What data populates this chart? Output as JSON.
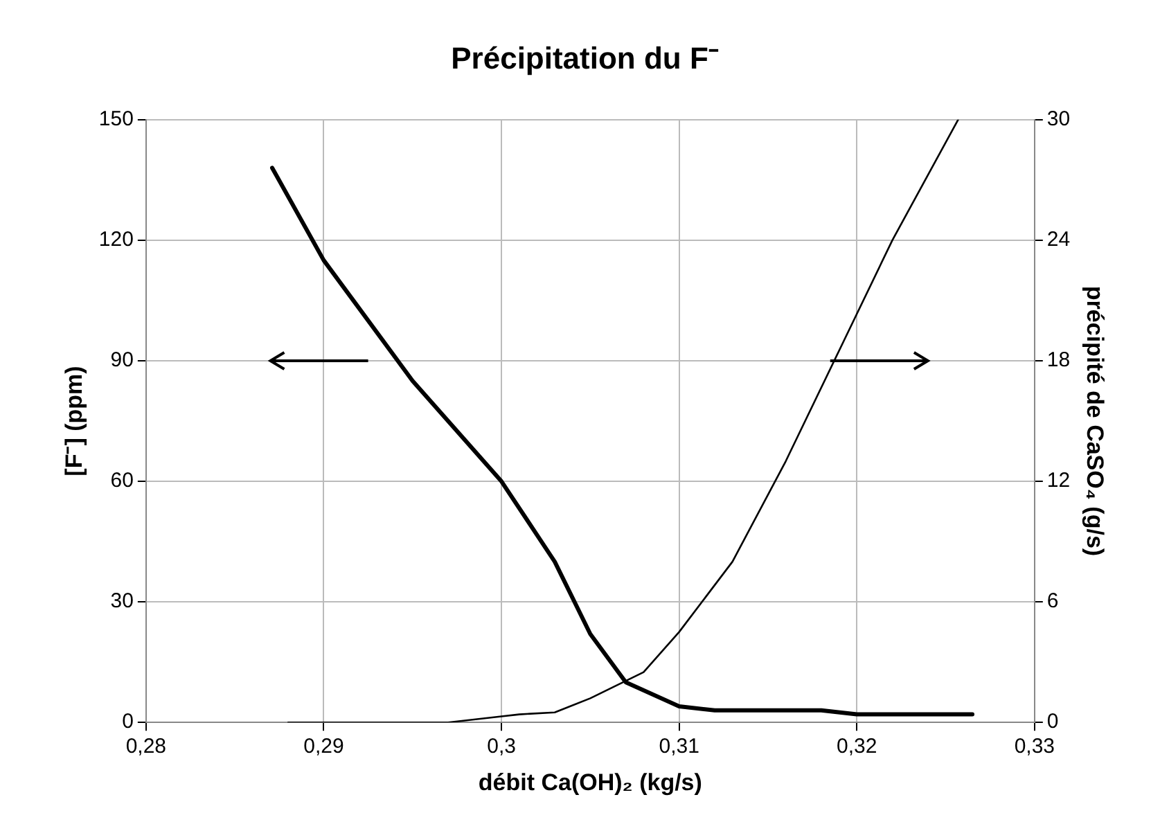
{
  "chart_data": {
    "type": "line",
    "title": "Précipitation du F⁻",
    "xlabel": "débit Ca(OH)₂ (kg/s)",
    "ylabel": "[F⁻] (ppm)",
    "y2label": "précipité de CaSO₄ (g/s)",
    "xlim": [
      0.28,
      0.33
    ],
    "xticks": [
      {
        "value": 0.28,
        "label": "0,28"
      },
      {
        "value": 0.29,
        "label": "0,29"
      },
      {
        "value": 0.3,
        "label": "0,3"
      },
      {
        "value": 0.31,
        "label": "0,31"
      },
      {
        "value": 0.32,
        "label": "0,32"
      },
      {
        "value": 0.33,
        "label": "0,33"
      }
    ],
    "ylim": [
      0,
      150
    ],
    "yticks": [
      0,
      30,
      60,
      90,
      120,
      150
    ],
    "y2lim": [
      0,
      30
    ],
    "y2ticks": [
      0,
      6,
      12,
      18,
      24,
      30
    ],
    "grid": true,
    "legend": false,
    "marker": "none",
    "line_style": "solid",
    "series": [
      {
        "color": "#000000",
        "x": [
          0.2871,
          0.29,
          0.295,
          0.3,
          0.303,
          0.305,
          0.307,
          0.31,
          0.312,
          0.318,
          0.32,
          0.3265
        ],
        "values": [
          138,
          115,
          85,
          60,
          40,
          22,
          10,
          4,
          3,
          3,
          2,
          2
        ]
      },
      {
        "color": "#000000",
        "axis": "y2",
        "x": [
          0.288,
          0.297,
          0.3,
          0.301,
          0.303,
          0.305,
          0.308,
          0.31,
          0.313,
          0.316,
          0.319,
          0.322,
          0.3257
        ],
        "values": [
          0,
          0,
          0.3,
          0.4,
          0.5,
          1.2,
          2.5,
          4.5,
          8,
          13,
          18.5,
          24,
          30
        ]
      }
    ]
  }
}
